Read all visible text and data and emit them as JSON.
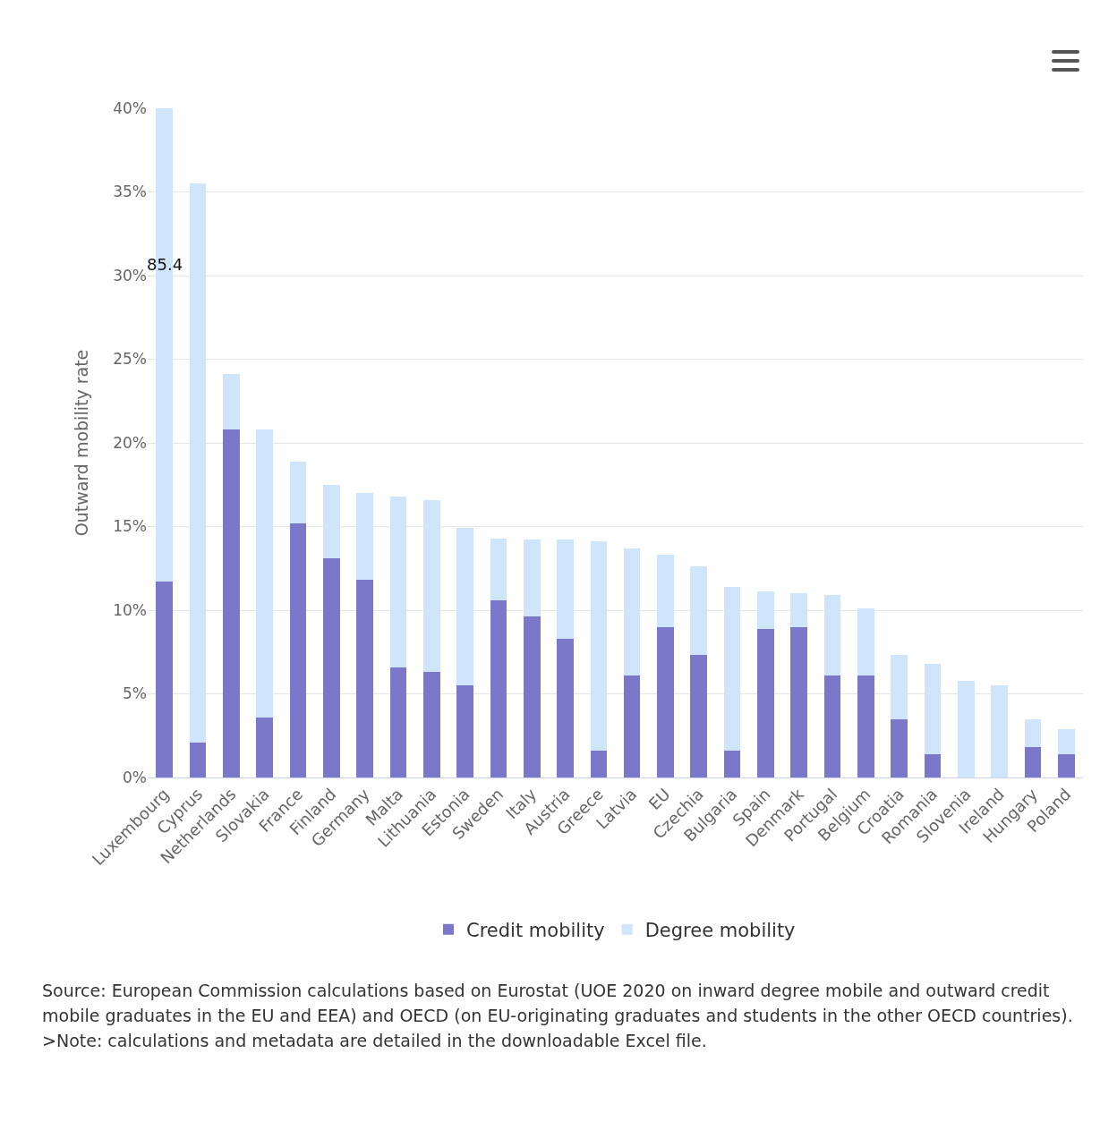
{
  "chart_data": {
    "type": "bar",
    "stacked": true,
    "ylabel": "Outward mobility rate",
    "categories": [
      "Luxembourg",
      "Cyprus",
      "Netherlands",
      "Slovakia",
      "France",
      "Finland",
      "Germany",
      "Malta",
      "Lithuania",
      "Estonia",
      "Sweden",
      "Italy",
      "Austria",
      "Greece",
      "Latvia",
      "EU",
      "Czechia",
      "Bulgaria",
      "Spain",
      "Denmark",
      "Portugal",
      "Belgium",
      "Croatia",
      "Romania",
      "Slovenia",
      "Ireland",
      "Hungary",
      "Poland"
    ],
    "series": [
      {
        "name": "Credit mobility",
        "color": "#7b78c9",
        "values": [
          11.7,
          2.1,
          20.8,
          3.6,
          15.2,
          13.1,
          11.8,
          6.6,
          6.3,
          5.5,
          10.6,
          9.6,
          8.3,
          1.6,
          6.1,
          9.0,
          7.3,
          1.6,
          8.9,
          9.0,
          6.1,
          6.1,
          3.5,
          1.4,
          0,
          0,
          1.8,
          1.4
        ]
      },
      {
        "name": "Degree mobility",
        "color": "#cfe5fb",
        "values": [
          28.3,
          33.4,
          3.3,
          17.2,
          3.7,
          4.4,
          5.2,
          10.2,
          10.3,
          9.4,
          3.7,
          4.6,
          5.9,
          12.5,
          7.6,
          4.3,
          5.3,
          9.8,
          2.2,
          2.0,
          4.8,
          4.0,
          3.8,
          5.4,
          5.8,
          5.5,
          1.7,
          1.5
        ]
      }
    ],
    "ylim": [
      0,
      40
    ],
    "yticks": [
      {
        "value": 0,
        "label": "0%"
      },
      {
        "value": 5,
        "label": "5%"
      },
      {
        "value": 10,
        "label": "10%"
      },
      {
        "value": 15,
        "label": "15%"
      },
      {
        "value": 20,
        "label": "20%"
      },
      {
        "value": 25,
        "label": "25%"
      },
      {
        "value": 30,
        "label": "30%"
      },
      {
        "value": 35,
        "label": "35%"
      },
      {
        "value": 40,
        "label": "40%"
      }
    ],
    "grid": "y",
    "legend": "bottom",
    "annotations": [
      "85.4",
      "Source: European Commission calculations based on Eurostat (UOE 2020 on inward degree mobile and outward credit mobile graduates in the EU and EEA) and OECD (on EU-originating graduates and students in the other OECD countries).",
      ">Note: calculations and metadata are detailed in the downloadable Excel file."
    ]
  }
}
